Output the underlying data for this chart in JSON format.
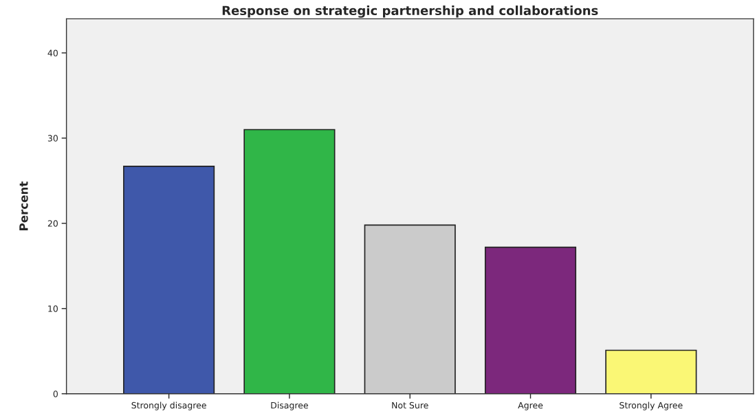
{
  "chart_data": {
    "type": "bar",
    "title": "Response on strategic partnership and collaborations",
    "ylabel": "Percent",
    "categories": [
      "Strongly disagree",
      "Disagree",
      "Not Sure",
      "Agree",
      "Strongly Agree"
    ],
    "values": [
      26.7,
      31.0,
      19.8,
      17.2,
      5.1
    ],
    "colors": [
      "#3f58aa",
      "#30b648",
      "#cbcbcb",
      "#7c287c",
      "#faf775"
    ],
    "ylim": [
      0,
      44
    ],
    "yticks": [
      0,
      10,
      20,
      30,
      40
    ],
    "grid": false
  }
}
